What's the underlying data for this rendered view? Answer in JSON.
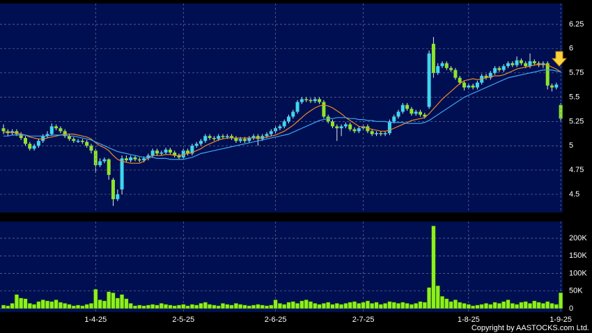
{
  "chart_data": [
    {
      "type": "candlestick",
      "up_color": "#3fd6ef",
      "down_color": "#8ce52a",
      "ylim": [
        4.313,
        6.465
      ],
      "yticks": [
        4.5,
        4.75,
        5,
        5.25,
        5.5,
        5.75,
        6,
        6.25
      ],
      "grid": true,
      "open": [
        5.18,
        5.15,
        5.13,
        5.15,
        5.12,
        5.08,
        5.02,
        4.97,
        5.0,
        5.05,
        5.1,
        5.12,
        5.2,
        5.18,
        5.15,
        5.1,
        5.07,
        5.05,
        5.05,
        5.04,
        5.0,
        4.95,
        4.8,
        4.84,
        4.86,
        4.65,
        4.45,
        4.55,
        4.87,
        4.85,
        4.88,
        4.86,
        4.85,
        4.87,
        4.9,
        4.95,
        4.92,
        4.93,
        4.96,
        4.93,
        4.9,
        4.88,
        4.95,
        4.92,
        5.0,
        5.02,
        5.05,
        5.1,
        5.08,
        5.07,
        5.1,
        5.09,
        5.1,
        5.08,
        5.05,
        5.07,
        5.05,
        5.08,
        5.1,
        5.07,
        5.1,
        5.12,
        5.15,
        5.18,
        5.2,
        5.25,
        5.3,
        5.35,
        5.45,
        5.48,
        5.47,
        5.46,
        5.48,
        5.45,
        5.3,
        5.25,
        5.2,
        5.18,
        5.2,
        5.22,
        5.17,
        5.15,
        5.18,
        5.2,
        5.15,
        5.12,
        5.13,
        5.12,
        5.13,
        5.25,
        5.3,
        5.35,
        5.42,
        5.38,
        5.33,
        5.35,
        5.32,
        5.4,
        6.05,
        5.75,
        5.82,
        5.85,
        5.8,
        5.78,
        5.7,
        5.65,
        5.6,
        5.62,
        5.6,
        5.65,
        5.72,
        5.7,
        5.75,
        5.8,
        5.78,
        5.82,
        5.85,
        5.83,
        5.88,
        5.85,
        5.82,
        5.87,
        5.85,
        5.83,
        5.85,
        5.62,
        5.6,
        5.42
      ],
      "high": [
        5.22,
        5.17,
        5.17,
        5.17,
        5.14,
        5.1,
        5.04,
        5.02,
        5.07,
        5.12,
        5.15,
        5.23,
        5.22,
        5.2,
        5.17,
        5.12,
        5.09,
        5.07,
        5.07,
        5.06,
        5.02,
        4.97,
        4.87,
        4.88,
        4.87,
        4.67,
        4.55,
        4.9,
        4.9,
        4.9,
        4.9,
        4.88,
        4.89,
        4.92,
        4.97,
        4.97,
        4.95,
        4.98,
        4.98,
        4.95,
        4.92,
        4.97,
        4.97,
        5.02,
        5.04,
        5.07,
        5.12,
        5.12,
        5.1,
        5.12,
        5.12,
        5.12,
        5.12,
        5.1,
        5.09,
        5.09,
        5.1,
        5.12,
        5.12,
        5.12,
        5.14,
        5.17,
        5.2,
        5.22,
        5.27,
        5.32,
        5.37,
        5.47,
        5.5,
        5.5,
        5.49,
        5.5,
        5.5,
        5.47,
        5.32,
        5.27,
        5.22,
        5.22,
        5.24,
        5.24,
        5.19,
        5.2,
        5.22,
        5.22,
        5.17,
        5.15,
        5.15,
        5.15,
        5.27,
        5.32,
        5.37,
        5.44,
        5.44,
        5.4,
        5.37,
        5.37,
        5.34,
        5.98,
        6.12,
        5.85,
        5.87,
        5.87,
        5.82,
        5.8,
        5.72,
        5.67,
        5.64,
        5.64,
        5.67,
        5.74,
        5.74,
        5.77,
        5.82,
        5.82,
        5.84,
        5.87,
        5.87,
        5.92,
        5.9,
        5.87,
        5.95,
        5.89,
        5.87,
        5.87,
        5.87,
        5.64,
        5.65,
        5.44
      ],
      "low": [
        5.12,
        5.1,
        5.11,
        5.1,
        5.06,
        5.0,
        4.95,
        4.95,
        4.98,
        5.03,
        5.08,
        5.1,
        5.16,
        5.13,
        5.08,
        5.05,
        5.03,
        5.03,
        5.02,
        4.98,
        4.92,
        4.72,
        4.78,
        4.82,
        4.65,
        4.38,
        4.43,
        4.5,
        4.83,
        4.83,
        4.84,
        4.83,
        4.83,
        4.85,
        4.88,
        4.9,
        4.9,
        4.91,
        4.91,
        4.88,
        4.86,
        4.86,
        4.9,
        4.9,
        4.98,
        5.0,
        5.03,
        5.06,
        5.05,
        5.05,
        5.07,
        5.07,
        5.06,
        5.03,
        5.03,
        5.03,
        5.03,
        5.06,
        5.0,
        5.05,
        5.08,
        5.1,
        5.13,
        5.16,
        5.18,
        5.23,
        5.28,
        5.33,
        5.43,
        5.45,
        5.44,
        5.44,
        5.43,
        5.28,
        5.23,
        5.18,
        5.05,
        5.1,
        5.18,
        5.15,
        5.13,
        5.13,
        5.16,
        5.13,
        5.1,
        5.1,
        5.1,
        5.1,
        5.11,
        5.23,
        5.28,
        5.33,
        5.36,
        5.31,
        5.31,
        5.3,
        5.28,
        5.38,
        5.7,
        5.73,
        5.8,
        5.78,
        5.76,
        5.68,
        5.63,
        5.57,
        5.58,
        5.58,
        5.58,
        5.63,
        5.68,
        5.68,
        5.73,
        5.76,
        5.76,
        5.8,
        5.81,
        5.81,
        5.83,
        5.8,
        5.8,
        5.83,
        5.81,
        5.8,
        5.58,
        5.56,
        5.58,
        5.26
      ],
      "close": [
        5.15,
        5.13,
        5.15,
        5.12,
        5.08,
        5.02,
        4.97,
        5.0,
        5.05,
        5.1,
        5.12,
        5.2,
        5.18,
        5.15,
        5.1,
        5.07,
        5.05,
        5.05,
        5.04,
        5.0,
        4.95,
        4.8,
        4.84,
        4.86,
        4.7,
        4.45,
        4.5,
        4.87,
        4.85,
        4.88,
        4.86,
        4.85,
        4.87,
        4.9,
        4.95,
        4.92,
        4.93,
        4.96,
        4.93,
        4.9,
        4.88,
        4.95,
        4.92,
        5.0,
        5.02,
        5.05,
        5.1,
        5.08,
        5.07,
        5.1,
        5.09,
        5.1,
        5.08,
        5.05,
        5.07,
        5.05,
        5.08,
        5.1,
        5.07,
        5.1,
        5.12,
        5.15,
        5.18,
        5.2,
        5.25,
        5.3,
        5.35,
        5.45,
        5.48,
        5.47,
        5.46,
        5.48,
        5.45,
        5.3,
        5.25,
        5.2,
        5.18,
        5.2,
        5.22,
        5.17,
        5.15,
        5.18,
        5.2,
        5.15,
        5.12,
        5.13,
        5.12,
        5.13,
        5.25,
        5.3,
        5.35,
        5.42,
        5.38,
        5.33,
        5.35,
        5.32,
        5.3,
        5.95,
        5.75,
        5.82,
        5.85,
        5.8,
        5.78,
        5.7,
        5.65,
        5.6,
        5.62,
        5.6,
        5.65,
        5.72,
        5.7,
        5.75,
        5.8,
        5.78,
        5.82,
        5.85,
        5.83,
        5.88,
        5.85,
        5.82,
        5.87,
        5.85,
        5.83,
        5.85,
        5.62,
        5.6,
        5.63,
        5.28
      ],
      "series": [
        {
          "color": "#f08a24",
          "values": [
            5.14,
            5.14,
            5.14,
            5.13,
            5.12,
            5.11,
            5.09,
            5.08,
            5.07,
            5.07,
            5.08,
            5.09,
            5.1,
            5.11,
            5.12,
            5.12,
            5.12,
            5.11,
            5.1,
            5.09,
            5.07,
            5.03,
            5.0,
            4.98,
            4.95,
            4.9,
            4.86,
            4.84,
            4.83,
            4.82,
            4.82,
            4.82,
            4.84,
            4.88,
            4.9,
            4.9,
            4.9,
            4.91,
            4.91,
            4.9,
            4.9,
            4.91,
            4.92,
            4.93,
            4.95,
            4.97,
            5.0,
            5.02,
            5.04,
            5.06,
            5.07,
            5.08,
            5.08,
            5.08,
            5.08,
            5.08,
            5.08,
            5.08,
            5.08,
            5.08,
            5.09,
            5.1,
            5.11,
            5.13,
            5.15,
            5.18,
            5.21,
            5.25,
            5.29,
            5.33,
            5.36,
            5.39,
            5.41,
            5.42,
            5.41,
            5.39,
            5.36,
            5.33,
            5.29,
            5.26,
            5.23,
            5.2,
            5.19,
            5.18,
            5.17,
            5.16,
            5.15,
            5.15,
            5.16,
            5.18,
            5.2,
            5.22,
            5.24,
            5.26,
            5.27,
            5.28,
            5.29,
            5.33,
            5.38,
            5.43,
            5.48,
            5.52,
            5.56,
            5.6,
            5.64,
            5.67,
            5.68,
            5.69,
            5.68,
            5.69,
            5.7,
            5.71,
            5.72,
            5.72,
            5.73,
            5.75,
            5.77,
            5.79,
            5.8,
            5.81,
            5.82,
            5.83,
            5.84,
            5.84,
            5.83,
            5.81,
            5.79,
            5.76
          ]
        },
        {
          "color": "#3fa6f2",
          "values": [
            5.1,
            5.1,
            5.11,
            5.11,
            5.11,
            5.11,
            5.1,
            5.1,
            5.1,
            5.1,
            5.1,
            5.11,
            5.11,
            5.11,
            5.11,
            5.1,
            5.1,
            5.09,
            5.08,
            5.07,
            5.06,
            5.04,
            5.02,
            5.0,
            4.98,
            4.96,
            4.94,
            4.93,
            4.92,
            4.91,
            4.9,
            4.89,
            4.88,
            4.88,
            4.88,
            4.87,
            4.87,
            4.87,
            4.86,
            4.86,
            4.86,
            4.86,
            4.87,
            4.88,
            4.9,
            4.92,
            4.93,
            4.94,
            4.95,
            4.96,
            4.97,
            4.98,
            4.99,
            5.0,
            5.01,
            5.02,
            5.03,
            5.04,
            5.05,
            5.06,
            5.07,
            5.08,
            5.09,
            5.1,
            5.11,
            5.12,
            5.14,
            5.16,
            5.18,
            5.2,
            5.22,
            5.24,
            5.26,
            5.27,
            5.28,
            5.28,
            5.29,
            5.29,
            5.29,
            5.28,
            5.28,
            5.27,
            5.27,
            5.26,
            5.26,
            5.25,
            5.25,
            5.25,
            5.24,
            5.24,
            5.24,
            5.24,
            5.23,
            5.23,
            5.23,
            5.23,
            5.24,
            5.26,
            5.29,
            5.32,
            5.35,
            5.38,
            5.41,
            5.44,
            5.47,
            5.5,
            5.52,
            5.54,
            5.56,
            5.58,
            5.6,
            5.62,
            5.64,
            5.66,
            5.68,
            5.7,
            5.71,
            5.72,
            5.73,
            5.74,
            5.75,
            5.76,
            5.77,
            5.78,
            5.78,
            5.78,
            5.77,
            5.76
          ]
        }
      ]
    },
    {
      "type": "bar",
      "color": "#8cf01e",
      "ylim": [
        -10000,
        247500
      ],
      "yticks": [
        0,
        {
          "value": 50000,
          "label": "50K"
        },
        {
          "value": 100000,
          "label": "100K"
        },
        {
          "value": 150000,
          "label": "150K"
        },
        {
          "value": 200000,
          "label": "200K"
        }
      ],
      "grid": true,
      "categories": [
        null,
        null,
        null,
        null,
        null,
        null,
        null,
        null,
        null,
        null,
        null,
        null,
        null,
        null,
        null,
        null,
        null,
        null,
        null,
        null,
        null,
        "1-4-25",
        null,
        null,
        null,
        null,
        null,
        null,
        null,
        null,
        null,
        null,
        null,
        null,
        null,
        null,
        null,
        null,
        null,
        null,
        null,
        "2-5-25",
        null,
        null,
        null,
        null,
        null,
        null,
        null,
        null,
        null,
        null,
        null,
        null,
        null,
        null,
        null,
        null,
        null,
        null,
        null,
        null,
        "2-6-25",
        null,
        null,
        null,
        null,
        null,
        null,
        null,
        null,
        null,
        null,
        null,
        null,
        null,
        null,
        null,
        null,
        null,
        null,
        null,
        "2-7-25",
        null,
        null,
        null,
        null,
        null,
        null,
        null,
        null,
        null,
        null,
        null,
        null,
        null,
        null,
        null,
        null,
        null,
        null,
        null,
        null,
        null,
        null,
        null,
        "1-8-25",
        null,
        null,
        null,
        null,
        null,
        null,
        null,
        null,
        null,
        null,
        null,
        null,
        null,
        null,
        null,
        null,
        null,
        null,
        null,
        null,
        "1-9-25"
      ],
      "values": [
        10000,
        8000,
        15000,
        40000,
        30000,
        28000,
        15000,
        12000,
        20000,
        25000,
        22000,
        20000,
        25000,
        18000,
        15000,
        12000,
        8000,
        10000,
        8000,
        12000,
        15000,
        55000,
        25000,
        22000,
        48000,
        45000,
        30000,
        40000,
        28000,
        15000,
        8000,
        10000,
        8000,
        10000,
        12000,
        10000,
        15000,
        12000,
        10000,
        8000,
        10000,
        12000,
        8000,
        12000,
        10000,
        15000,
        18000,
        12000,
        10000,
        8000,
        15000,
        12000,
        10000,
        15000,
        12000,
        10000,
        8000,
        10000,
        12000,
        10000,
        8000,
        10000,
        25000,
        15000,
        12000,
        18000,
        20000,
        15000,
        22000,
        25000,
        20000,
        15000,
        12000,
        15000,
        18000,
        12000,
        15000,
        12000,
        15000,
        18000,
        20000,
        15000,
        18000,
        22000,
        15000,
        18000,
        12000,
        15000,
        20000,
        18000,
        15000,
        18000,
        15000,
        12000,
        15000,
        20000,
        18000,
        60000,
        235000,
        65000,
        35000,
        28000,
        20000,
        25000,
        18000,
        15000,
        12000,
        8000,
        10000,
        12000,
        15000,
        12000,
        18000,
        15000,
        20000,
        25000,
        15000,
        12000,
        18000,
        20000,
        15000,
        22000,
        18000,
        15000,
        20000,
        15000,
        12000,
        45000
      ]
    }
  ],
  "footer": "Copyright by AASTOCKS.com Ltd."
}
